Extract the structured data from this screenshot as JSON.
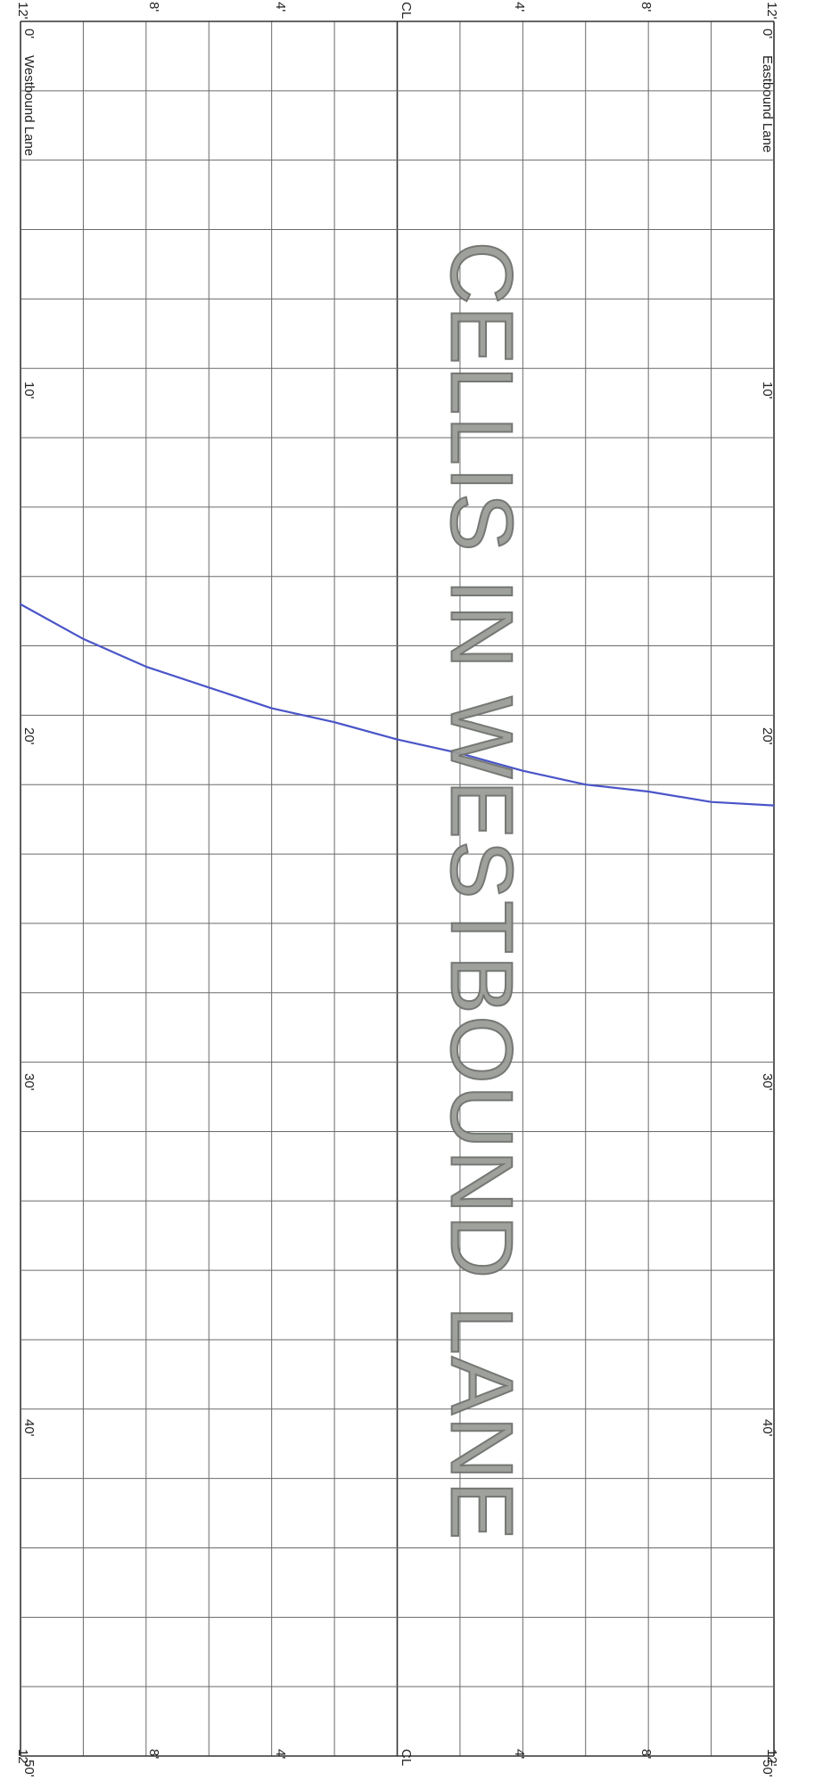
{
  "document": {
    "lane_labels": {
      "left": "Westbound Lane",
      "right": "Eastbound Lane"
    },
    "offset_labels": [
      "12'",
      "8'",
      "4'",
      "CL",
      "4'",
      "8'",
      "12'"
    ],
    "station_labels": [
      "0'",
      "10'",
      "20'",
      "30'",
      "40'",
      "50'"
    ],
    "stamp": "CELLIS IN WESTBOUND LANE",
    "colors": {
      "grid": "#6a6a6a",
      "centerline": "#333333",
      "crack_line": "#4a55c8",
      "stamp": "#9a9c98"
    },
    "crack_line": {
      "units": "offset_ft (negative = westbound, positive = eastbound) vs station_ft",
      "points": [
        [
          -12,
          16.8
        ],
        [
          -10,
          17.8
        ],
        [
          -8,
          18.6
        ],
        [
          -6,
          19.2
        ],
        [
          -4,
          19.8
        ],
        [
          -2,
          20.2
        ],
        [
          0,
          20.7
        ],
        [
          2,
          21.1
        ],
        [
          4,
          21.6
        ],
        [
          6,
          22.0
        ],
        [
          8,
          22.2
        ],
        [
          10,
          22.5
        ],
        [
          12,
          22.6
        ]
      ]
    }
  }
}
